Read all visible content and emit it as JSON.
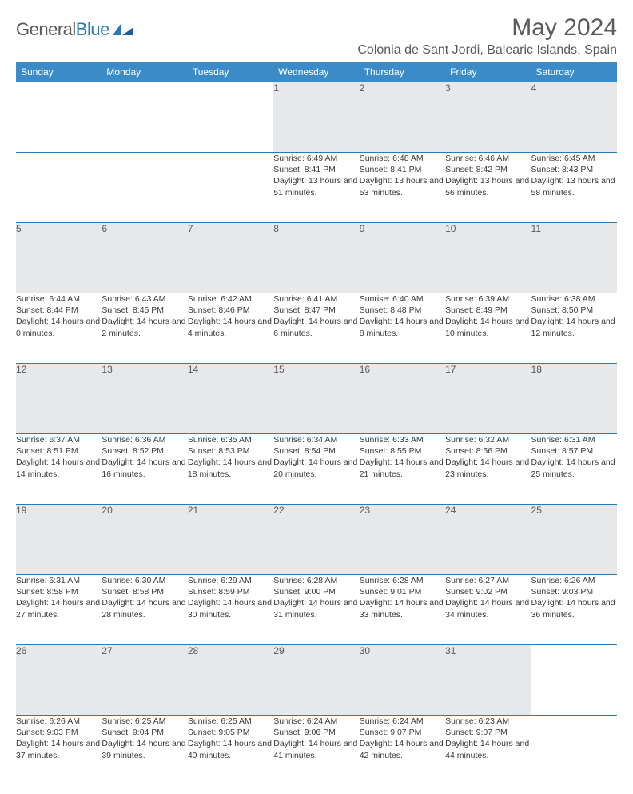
{
  "logo": {
    "part1": "General",
    "part2": "Blue"
  },
  "title": "May 2024",
  "location": "Colonia de Sant Jordi, Balearic Islands, Spain",
  "colors": {
    "header_bg": "#3b8bc9",
    "header_text": "#ffffff",
    "daynum_bg": "#e7e8e9",
    "border": "#2a7ab9",
    "text": "#595a5c",
    "logo_gray": "#58595b",
    "logo_blue": "#2a7ab9"
  },
  "days_of_week": [
    "Sunday",
    "Monday",
    "Tuesday",
    "Wednesday",
    "Thursday",
    "Friday",
    "Saturday"
  ],
  "weeks": [
    [
      null,
      null,
      null,
      {
        "n": "1",
        "sr": "6:49 AM",
        "ss": "8:41 PM",
        "dl": "13 hours and 51 minutes."
      },
      {
        "n": "2",
        "sr": "6:48 AM",
        "ss": "8:41 PM",
        "dl": "13 hours and 53 minutes."
      },
      {
        "n": "3",
        "sr": "6:46 AM",
        "ss": "8:42 PM",
        "dl": "13 hours and 56 minutes."
      },
      {
        "n": "4",
        "sr": "6:45 AM",
        "ss": "8:43 PM",
        "dl": "13 hours and 58 minutes."
      }
    ],
    [
      {
        "n": "5",
        "sr": "6:44 AM",
        "ss": "8:44 PM",
        "dl": "14 hours and 0 minutes."
      },
      {
        "n": "6",
        "sr": "6:43 AM",
        "ss": "8:45 PM",
        "dl": "14 hours and 2 minutes."
      },
      {
        "n": "7",
        "sr": "6:42 AM",
        "ss": "8:46 PM",
        "dl": "14 hours and 4 minutes."
      },
      {
        "n": "8",
        "sr": "6:41 AM",
        "ss": "8:47 PM",
        "dl": "14 hours and 6 minutes."
      },
      {
        "n": "9",
        "sr": "6:40 AM",
        "ss": "8:48 PM",
        "dl": "14 hours and 8 minutes."
      },
      {
        "n": "10",
        "sr": "6:39 AM",
        "ss": "8:49 PM",
        "dl": "14 hours and 10 minutes."
      },
      {
        "n": "11",
        "sr": "6:38 AM",
        "ss": "8:50 PM",
        "dl": "14 hours and 12 minutes."
      }
    ],
    [
      {
        "n": "12",
        "sr": "6:37 AM",
        "ss": "8:51 PM",
        "dl": "14 hours and 14 minutes."
      },
      {
        "n": "13",
        "sr": "6:36 AM",
        "ss": "8:52 PM",
        "dl": "14 hours and 16 minutes."
      },
      {
        "n": "14",
        "sr": "6:35 AM",
        "ss": "8:53 PM",
        "dl": "14 hours and 18 minutes."
      },
      {
        "n": "15",
        "sr": "6:34 AM",
        "ss": "8:54 PM",
        "dl": "14 hours and 20 minutes."
      },
      {
        "n": "16",
        "sr": "6:33 AM",
        "ss": "8:55 PM",
        "dl": "14 hours and 21 minutes."
      },
      {
        "n": "17",
        "sr": "6:32 AM",
        "ss": "8:56 PM",
        "dl": "14 hours and 23 minutes."
      },
      {
        "n": "18",
        "sr": "6:31 AM",
        "ss": "8:57 PM",
        "dl": "14 hours and 25 minutes."
      }
    ],
    [
      {
        "n": "19",
        "sr": "6:31 AM",
        "ss": "8:58 PM",
        "dl": "14 hours and 27 minutes."
      },
      {
        "n": "20",
        "sr": "6:30 AM",
        "ss": "8:58 PM",
        "dl": "14 hours and 28 minutes."
      },
      {
        "n": "21",
        "sr": "6:29 AM",
        "ss": "8:59 PM",
        "dl": "14 hours and 30 minutes."
      },
      {
        "n": "22",
        "sr": "6:28 AM",
        "ss": "9:00 PM",
        "dl": "14 hours and 31 minutes."
      },
      {
        "n": "23",
        "sr": "6:28 AM",
        "ss": "9:01 PM",
        "dl": "14 hours and 33 minutes."
      },
      {
        "n": "24",
        "sr": "6:27 AM",
        "ss": "9:02 PM",
        "dl": "14 hours and 34 minutes."
      },
      {
        "n": "25",
        "sr": "6:26 AM",
        "ss": "9:03 PM",
        "dl": "14 hours and 36 minutes."
      }
    ],
    [
      {
        "n": "26",
        "sr": "6:26 AM",
        "ss": "9:03 PM",
        "dl": "14 hours and 37 minutes."
      },
      {
        "n": "27",
        "sr": "6:25 AM",
        "ss": "9:04 PM",
        "dl": "14 hours and 39 minutes."
      },
      {
        "n": "28",
        "sr": "6:25 AM",
        "ss": "9:05 PM",
        "dl": "14 hours and 40 minutes."
      },
      {
        "n": "29",
        "sr": "6:24 AM",
        "ss": "9:06 PM",
        "dl": "14 hours and 41 minutes."
      },
      {
        "n": "30",
        "sr": "6:24 AM",
        "ss": "9:07 PM",
        "dl": "14 hours and 42 minutes."
      },
      {
        "n": "31",
        "sr": "6:23 AM",
        "ss": "9:07 PM",
        "dl": "14 hours and 44 minutes."
      },
      null
    ]
  ],
  "labels": {
    "sunrise": "Sunrise:",
    "sunset": "Sunset:",
    "daylight": "Daylight:"
  }
}
